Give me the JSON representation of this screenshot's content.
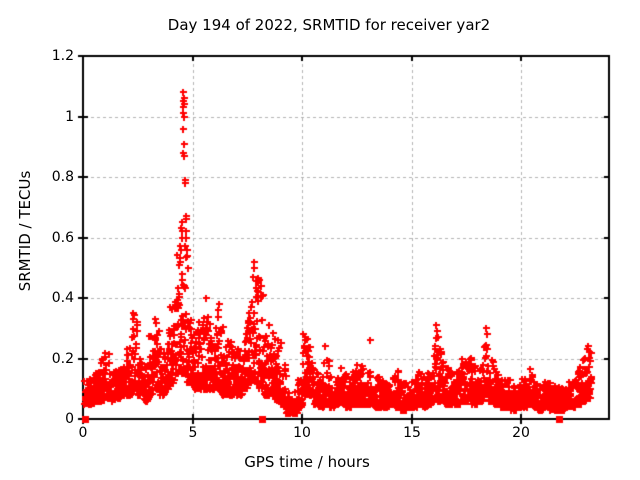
{
  "chart_data": {
    "type": "scatter",
    "title": "Day 194 of 2022, SRMTID for receiver yar2",
    "xlabel": "GPS time / hours",
    "ylabel": "SRMTID / TECUs",
    "xlim": [
      0,
      24
    ],
    "ylim": [
      0,
      1.2
    ],
    "xticks": [
      0,
      5,
      10,
      15,
      20
    ],
    "xtick_labels": [
      "0",
      "5",
      "10",
      "15",
      "20"
    ],
    "yticks": [
      0,
      0.2,
      0.4,
      0.6,
      0.8,
      1,
      1.2
    ],
    "ytick_labels": [
      "0",
      "0.2",
      "0.4",
      "0.6",
      "0.8",
      "1",
      "1.2"
    ],
    "grid": true,
    "legend": "none",
    "marker": "plus",
    "colors": {
      "marker": "#ff0000",
      "grid": "#b3b3b3",
      "border": "#000000",
      "text": "#000000",
      "background": "#ffffff"
    },
    "t_start": 0.05,
    "t_end": 23.2,
    "sample_step_hours": 0.008,
    "bin_width_hours": 0.25,
    "envelope_bins": [
      [
        0.0,
        0.05,
        0.13
      ],
      [
        0.25,
        0.05,
        0.14
      ],
      [
        0.5,
        0.06,
        0.16
      ],
      [
        0.75,
        0.06,
        0.2
      ],
      [
        1.0,
        0.07,
        0.22
      ],
      [
        1.25,
        0.06,
        0.16
      ],
      [
        1.5,
        0.07,
        0.17
      ],
      [
        1.75,
        0.08,
        0.18
      ],
      [
        2.0,
        0.08,
        0.24
      ],
      [
        2.25,
        0.1,
        0.35
      ],
      [
        2.5,
        0.08,
        0.22
      ],
      [
        2.75,
        0.06,
        0.18
      ],
      [
        3.0,
        0.08,
        0.3
      ],
      [
        3.25,
        0.1,
        0.32
      ],
      [
        3.5,
        0.08,
        0.24
      ],
      [
        3.75,
        0.1,
        0.3
      ],
      [
        4.0,
        0.12,
        0.42
      ],
      [
        4.25,
        0.15,
        0.58
      ],
      [
        4.5,
        0.15,
        0.6
      ],
      [
        4.75,
        0.12,
        0.35
      ],
      [
        5.0,
        0.1,
        0.3
      ],
      [
        5.25,
        0.1,
        0.32
      ],
      [
        5.5,
        0.1,
        0.36
      ],
      [
        5.75,
        0.1,
        0.32
      ],
      [
        6.0,
        0.1,
        0.34
      ],
      [
        6.25,
        0.08,
        0.32
      ],
      [
        6.5,
        0.08,
        0.26
      ],
      [
        6.75,
        0.08,
        0.24
      ],
      [
        7.0,
        0.08,
        0.24
      ],
      [
        7.25,
        0.1,
        0.3
      ],
      [
        7.5,
        0.12,
        0.44
      ],
      [
        7.75,
        0.12,
        0.48
      ],
      [
        8.0,
        0.1,
        0.42
      ],
      [
        8.25,
        0.08,
        0.3
      ],
      [
        8.5,
        0.08,
        0.3
      ],
      [
        8.75,
        0.06,
        0.24
      ],
      [
        9.0,
        0.05,
        0.2
      ],
      [
        9.25,
        0.02,
        0.1
      ],
      [
        9.5,
        0.02,
        0.1
      ],
      [
        9.75,
        0.04,
        0.14
      ],
      [
        10.0,
        0.08,
        0.27
      ],
      [
        10.25,
        0.08,
        0.24
      ],
      [
        10.5,
        0.05,
        0.18
      ],
      [
        10.75,
        0.04,
        0.14
      ],
      [
        11.0,
        0.05,
        0.2
      ],
      [
        11.25,
        0.04,
        0.14
      ],
      [
        11.5,
        0.05,
        0.14
      ],
      [
        11.75,
        0.05,
        0.18
      ],
      [
        12.0,
        0.04,
        0.14
      ],
      [
        12.25,
        0.05,
        0.16
      ],
      [
        12.5,
        0.05,
        0.18
      ],
      [
        12.75,
        0.05,
        0.17
      ],
      [
        13.0,
        0.05,
        0.18
      ],
      [
        13.25,
        0.04,
        0.14
      ],
      [
        13.5,
        0.04,
        0.13
      ],
      [
        13.75,
        0.04,
        0.13
      ],
      [
        14.0,
        0.05,
        0.15
      ],
      [
        14.25,
        0.04,
        0.16
      ],
      [
        14.5,
        0.03,
        0.12
      ],
      [
        14.75,
        0.04,
        0.12
      ],
      [
        15.0,
        0.04,
        0.14
      ],
      [
        15.25,
        0.05,
        0.16
      ],
      [
        15.5,
        0.04,
        0.14
      ],
      [
        15.75,
        0.05,
        0.18
      ],
      [
        16.0,
        0.06,
        0.28
      ],
      [
        16.25,
        0.06,
        0.24
      ],
      [
        16.5,
        0.05,
        0.18
      ],
      [
        16.75,
        0.05,
        0.16
      ],
      [
        17.0,
        0.05,
        0.16
      ],
      [
        17.25,
        0.06,
        0.2
      ],
      [
        17.5,
        0.06,
        0.22
      ],
      [
        17.75,
        0.05,
        0.18
      ],
      [
        18.0,
        0.06,
        0.2
      ],
      [
        18.25,
        0.08,
        0.26
      ],
      [
        18.5,
        0.06,
        0.22
      ],
      [
        18.75,
        0.05,
        0.16
      ],
      [
        19.0,
        0.04,
        0.14
      ],
      [
        19.25,
        0.04,
        0.13
      ],
      [
        19.5,
        0.03,
        0.12
      ],
      [
        19.75,
        0.04,
        0.14
      ],
      [
        20.0,
        0.04,
        0.16
      ],
      [
        20.25,
        0.05,
        0.17
      ],
      [
        20.5,
        0.04,
        0.13
      ],
      [
        20.75,
        0.03,
        0.12
      ],
      [
        21.0,
        0.04,
        0.14
      ],
      [
        21.25,
        0.03,
        0.12
      ],
      [
        21.5,
        0.03,
        0.11
      ],
      [
        21.75,
        0.03,
        0.12
      ],
      [
        22.0,
        0.04,
        0.13
      ],
      [
        22.25,
        0.04,
        0.14
      ],
      [
        22.5,
        0.05,
        0.18
      ],
      [
        22.75,
        0.06,
        0.22
      ],
      [
        23.0,
        0.07,
        0.24
      ]
    ],
    "outlier_points": [
      [
        2.28,
        0.33
      ],
      [
        2.3,
        0.35
      ],
      [
        3.3,
        0.33
      ],
      [
        3.95,
        0.37
      ],
      [
        4.42,
        0.52
      ],
      [
        4.45,
        0.56
      ],
      [
        4.47,
        0.63
      ],
      [
        4.5,
        0.6
      ],
      [
        4.52,
        0.62
      ],
      [
        4.53,
        0.65
      ],
      [
        4.55,
        0.88
      ],
      [
        4.55,
        0.96
      ],
      [
        4.56,
        1.01
      ],
      [
        4.57,
        1.03
      ],
      [
        4.57,
        1.05
      ],
      [
        4.58,
        1.08
      ],
      [
        4.59,
        1.04
      ],
      [
        4.6,
        1.06
      ],
      [
        4.6,
        1.0
      ],
      [
        4.62,
        0.91
      ],
      [
        4.63,
        0.87
      ],
      [
        4.65,
        0.79
      ],
      [
        4.66,
        0.78
      ],
      [
        4.68,
        0.67
      ],
      [
        4.69,
        0.66
      ],
      [
        4.7,
        0.62
      ],
      [
        4.72,
        0.6
      ],
      [
        4.74,
        0.56
      ],
      [
        4.76,
        0.54
      ],
      [
        4.78,
        0.5
      ],
      [
        5.6,
        0.4
      ],
      [
        6.15,
        0.36
      ],
      [
        6.2,
        0.38
      ],
      [
        7.75,
        0.47
      ],
      [
        7.78,
        0.52
      ],
      [
        7.8,
        0.5
      ],
      [
        8.05,
        0.46
      ],
      [
        8.1,
        0.44
      ],
      [
        8.5,
        0.31
      ],
      [
        8.9,
        0.26
      ],
      [
        9.05,
        0.25
      ],
      [
        10.05,
        0.28
      ],
      [
        10.15,
        0.27
      ],
      [
        11.05,
        0.24
      ],
      [
        13.1,
        0.26
      ],
      [
        16.1,
        0.31
      ],
      [
        16.15,
        0.29
      ],
      [
        18.4,
        0.3
      ],
      [
        18.45,
        0.28
      ],
      [
        23.05,
        0.24
      ],
      [
        23.1,
        0.22
      ]
    ],
    "zero_square_markers_x": [
      0.1,
      8.15,
      21.7
    ]
  }
}
